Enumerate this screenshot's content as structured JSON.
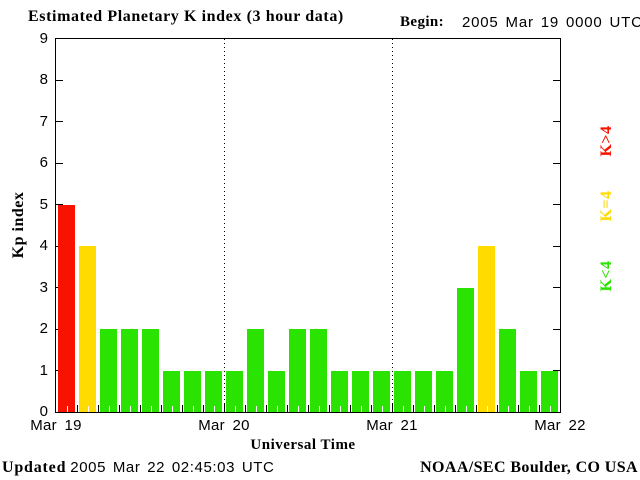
{
  "page": {
    "title": "Estimated Planetary K index (3 hour data)",
    "begin_label": "Begin:",
    "begin_value": "2005 Mar 19 0000 UTC",
    "updated_label": "Updated",
    "updated_value": "2005 Mar 22 02:45:03 UTC",
    "credit": "NOAA/SEC Boulder, CO USA"
  },
  "chart_data": {
    "type": "bar",
    "title": "Estimated Planetary K index (3 hour data)",
    "begin": "2005 Mar 19 0000 UTC",
    "xlabel": "Universal Time",
    "ylabel": "Kp index",
    "ylim": [
      0,
      9
    ],
    "yticks": [
      0,
      1,
      2,
      3,
      4,
      5,
      6,
      7,
      8,
      9
    ],
    "hours_per_bar": 3,
    "x_day_labels": [
      "Mar 19",
      "Mar 20",
      "Mar 21",
      "Mar 22"
    ],
    "bars_per_day": 8,
    "values": [
      5,
      4,
      2,
      2,
      2,
      1,
      1,
      1,
      1,
      2,
      1,
      2,
      2,
      1,
      1,
      1,
      1,
      1,
      1,
      3,
      4,
      2,
      1,
      1
    ],
    "color_rule": {
      "k_gt_4": "#f91200",
      "k_eq_4": "#ffdb00",
      "k_lt_4": "#2be300"
    },
    "legend": [
      {
        "label": "K>4",
        "color": "#f91200"
      },
      {
        "label": "K=4",
        "color": "#ffdb00"
      },
      {
        "label": "K<4",
        "color": "#2be300"
      }
    ],
    "grid": "dotted vertical lines at day boundaries",
    "legend_position": "right, rotated"
  }
}
